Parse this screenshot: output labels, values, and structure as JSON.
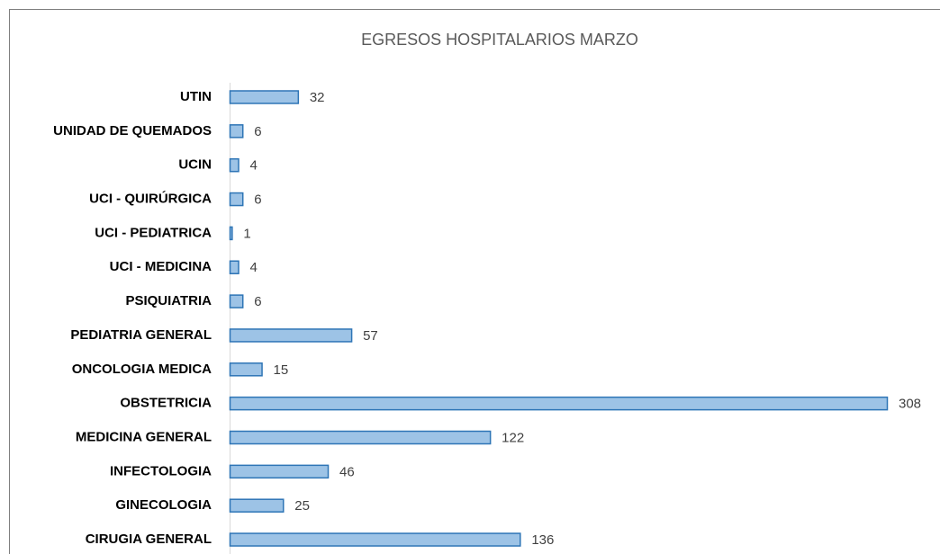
{
  "chart_data": {
    "type": "bar",
    "orientation": "horizontal",
    "title": "EGRESOS HOSPITALARIOS MARZO",
    "categories": [
      "UTIN",
      "UNIDAD DE QUEMADOS",
      "UCIN",
      "UCI - QUIRÚRGICA",
      "UCI - PEDIATRICA",
      "UCI - MEDICINA",
      "PSIQUIATRIA",
      "PEDIATRIA GENERAL",
      "ONCOLOGIA MEDICA",
      "OBSTETRICIA",
      "MEDICINA GENERAL",
      "INFECTOLOGIA",
      "GINECOLOGIA",
      "CIRUGIA GENERAL"
    ],
    "values": [
      32,
      6,
      4,
      6,
      1,
      4,
      6,
      57,
      15,
      308,
      122,
      46,
      25,
      136
    ],
    "color": "#9dc3e6",
    "edge_color": "#2e75b6"
  }
}
